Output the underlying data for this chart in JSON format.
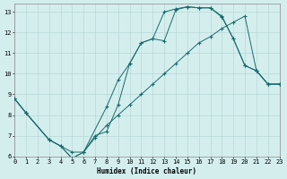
{
  "xlabel": "Humidex (Indice chaleur)",
  "xlim": [
    0,
    23
  ],
  "ylim": [
    6,
    13.4
  ],
  "xticks": [
    0,
    1,
    2,
    3,
    4,
    5,
    6,
    7,
    8,
    9,
    10,
    11,
    12,
    13,
    14,
    15,
    16,
    17,
    18,
    19,
    20,
    21,
    22,
    23
  ],
  "yticks": [
    6,
    7,
    8,
    9,
    10,
    11,
    12,
    13
  ],
  "bg_color": "#d4eeee",
  "grid_color": "#b8d8d8",
  "line_color": "#1a6b6b",
  "curves": [
    {
      "x": [
        0,
        1,
        3,
        4,
        5,
        6,
        8,
        9,
        10,
        11,
        12,
        13,
        14,
        15,
        16,
        17,
        18,
        19,
        20,
        21,
        22,
        23
      ],
      "y": [
        8.8,
        8.1,
        6.8,
        6.5,
        5.9,
        6.2,
        8.4,
        9.7,
        10.5,
        11.5,
        11.7,
        13.0,
        13.15,
        13.25,
        13.2,
        13.2,
        12.75,
        11.7,
        10.4,
        10.15,
        9.5,
        9.5
      ]
    },
    {
      "x": [
        0,
        1,
        3,
        4,
        5,
        6,
        7,
        8,
        9,
        10,
        11,
        12,
        13,
        14,
        15,
        16,
        17,
        18,
        19,
        20,
        21,
        22,
        23
      ],
      "y": [
        8.8,
        8.1,
        6.8,
        6.5,
        5.9,
        6.2,
        7.0,
        7.2,
        8.5,
        10.5,
        11.5,
        11.7,
        11.6,
        13.1,
        13.25,
        13.2,
        13.2,
        12.8,
        11.7,
        10.4,
        10.15,
        9.5,
        9.5
      ]
    },
    {
      "x": [
        0,
        1,
        3,
        5,
        6,
        7,
        8,
        9,
        10,
        11,
        12,
        13,
        14,
        15,
        16,
        17,
        18,
        19,
        20,
        21,
        22,
        23
      ],
      "y": [
        8.8,
        8.1,
        6.8,
        6.2,
        6.2,
        6.9,
        7.5,
        8.0,
        8.5,
        9.0,
        9.5,
        10.0,
        10.5,
        11.0,
        11.5,
        11.8,
        12.2,
        12.5,
        12.8,
        10.15,
        9.5,
        9.5
      ]
    }
  ]
}
